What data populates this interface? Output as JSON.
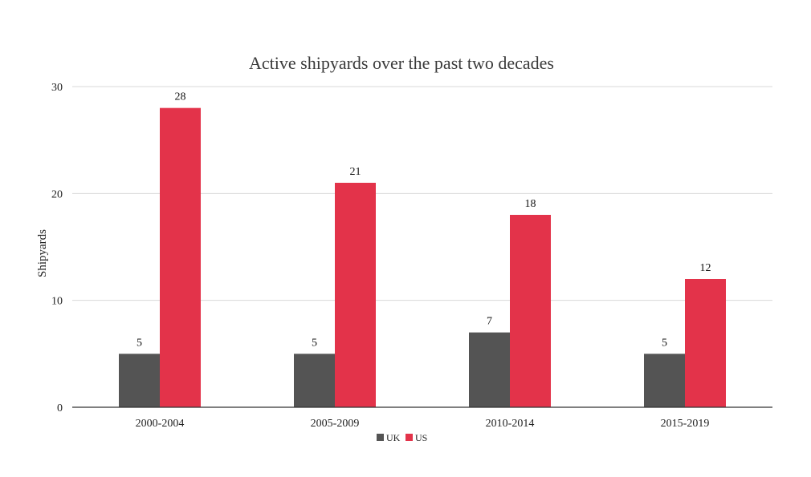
{
  "chart_data": {
    "type": "bar",
    "title": "Active shipyards over the past two decades",
    "xlabel": "",
    "ylabel": "Shipyards",
    "categories": [
      "2000-2004",
      "2005-2009",
      "2010-2014",
      "2015-2019"
    ],
    "series": [
      {
        "name": "UK",
        "values": [
          5,
          5,
          7,
          5
        ],
        "color": "#545454"
      },
      {
        "name": "US",
        "values": [
          28,
          21,
          18,
          12
        ],
        "color": "#e3334a"
      }
    ],
    "ylim": [
      0,
      30
    ],
    "yticks": [
      0,
      10,
      20,
      30
    ],
    "grid": true,
    "data_labels": true,
    "legend_position": "bottom"
  }
}
